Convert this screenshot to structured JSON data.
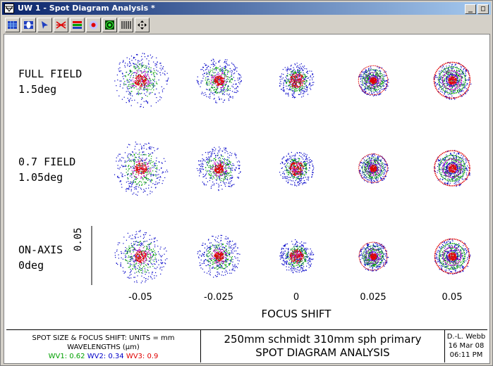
{
  "window": {
    "title": "UW 1 - Spot Diagram Analysis *"
  },
  "titlebar_buttons": {
    "minimize": "_",
    "maximize": "□",
    "close": "×"
  },
  "toolbar": {
    "tools": [
      "grid-icon",
      "lens-icon",
      "cursor-icon",
      "rays-icon",
      "color-bars-icon",
      "spot-icon",
      "target-icon",
      "vertical-lines-icon",
      "arrows-icon"
    ]
  },
  "chart_data": {
    "type": "scatter",
    "rows": [
      {
        "label_line1": "FULL FIELD",
        "label_line2": "1.5deg"
      },
      {
        "label_line1": "0.7 FIELD",
        "label_line2": "1.05deg"
      },
      {
        "label_line1": "ON-AXIS",
        "label_line2": "0deg"
      }
    ],
    "focus_shift": [
      "-0.05",
      "-0.025",
      "0",
      "0.025",
      "0.05"
    ],
    "xlabel": "FOCUS SHIFT",
    "scale_bar_label": "0.05",
    "spot_radii_mm": [
      0.047,
      0.038,
      0.03,
      0.026,
      0.032
    ],
    "colors": {
      "wv1": "#00a000",
      "wv2": "#0000c8",
      "wv3": "#e00000",
      "extra": "#c000c0"
    }
  },
  "footer": {
    "units": "SPOT SIZE & FOCUS SHIFT: UNITS = mm",
    "wavelengths": "WAVELENGTHS (μm)",
    "wv1": "WV1: 0.62",
    "wv2": "WV2: 0.34",
    "wv3": "WV3: 0.9",
    "title_line1": "250mm schmidt 310mm sph primary",
    "title_line2": "SPOT DIAGRAM ANALYSIS",
    "author": "D.-L. Webb",
    "date": "16 Mar 08",
    "time": "06:11 PM"
  }
}
